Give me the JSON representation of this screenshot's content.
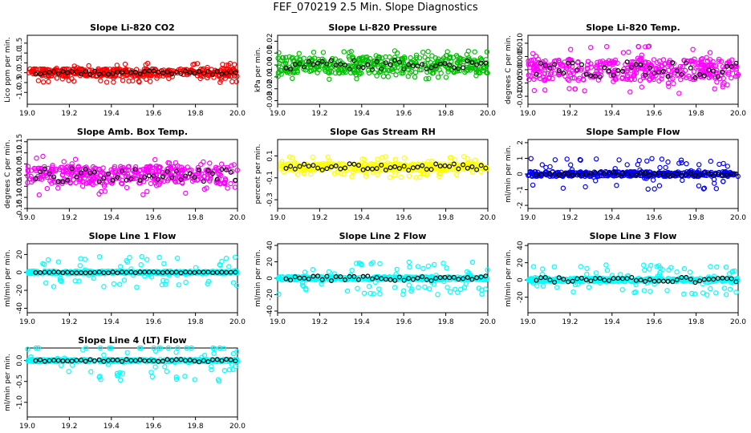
{
  "page_title": "FEF_070219  2.5 Min. Slope Diagnostics",
  "chart_data": [
    {
      "type": "scatter",
      "title": "Slope Li-820 CO2",
      "ylabel": "Lico ppm per min.",
      "color": "#ff0000",
      "xlim": [
        19.0,
        20.0
      ],
      "ylim": [
        -1.6,
        1.9
      ],
      "xticks": [
        19.0,
        19.2,
        19.4,
        19.6,
        19.8,
        20.0
      ],
      "xticklabels": [
        "19.0",
        "19.2",
        "19.4",
        "19.6",
        "19.8",
        "20.0"
      ],
      "yticks": [
        -1.0,
        -0.5,
        0.0,
        0.5,
        1.0,
        1.5
      ],
      "yticklabels": [
        "-1.0",
        "-0.5",
        "0.0",
        "0.5",
        "1.0",
        "1.5"
      ],
      "band": 0.2,
      "outlier": 0.5,
      "black_band": 0.1
    },
    {
      "type": "scatter",
      "title": "Slope Li-820 Pressure",
      "ylabel": "kPa per min.",
      "color": "#00c000",
      "xlim": [
        19.0,
        20.0
      ],
      "ylim": [
        -0.033,
        0.025
      ],
      "xticks": [
        19.0,
        19.2,
        19.4,
        19.6,
        19.8,
        20.0
      ],
      "xticklabels": [
        "19.0",
        "19.2",
        "19.4",
        "19.6",
        "19.8",
        "20.0"
      ],
      "yticks": [
        -0.03,
        -0.02,
        -0.01,
        0.0,
        0.01,
        0.02
      ],
      "yticklabels": [
        "-0.03",
        "-0.02",
        "-0.01",
        "0.00",
        "0.01",
        "0.02"
      ],
      "band": 0.007,
      "outlier": 0.012,
      "black_band": 0.004
    },
    {
      "type": "scatter",
      "title": "Slope Li-820 Temp.",
      "ylabel": "degrees C per min.",
      "color": "#ff00ff",
      "xlim": [
        19.0,
        20.0
      ],
      "ylim": [
        -0.013,
        0.013
      ],
      "xticks": [
        19.0,
        19.2,
        19.4,
        19.6,
        19.8,
        20.0
      ],
      "xticklabels": [
        "19.0",
        "19.2",
        "19.4",
        "19.6",
        "19.8",
        "20.0"
      ],
      "yticks": [
        -0.01,
        -0.005,
        0.0,
        0.005,
        0.01
      ],
      "yticklabels": [
        "-0.010",
        "-0.005",
        "0.000",
        "0.005",
        "0.010"
      ],
      "band": 0.004,
      "outlier": 0.009,
      "black_band": 0.003
    },
    {
      "type": "scatter",
      "title": "Slope Amb. Box Temp.",
      "ylabel": "degrees C per min.",
      "color": "#ff00ff",
      "xlim": [
        19.0,
        20.0
      ],
      "ylim": [
        -0.15,
        0.16
      ],
      "xticks": [
        19.0,
        19.2,
        19.4,
        19.6,
        19.8,
        20.0
      ],
      "xticklabels": [
        "19.0",
        "19.2",
        "19.4",
        "19.6",
        "19.8",
        "20.0"
      ],
      "yticks": [
        -0.15,
        -0.1,
        -0.05,
        0.0,
        0.05,
        0.1,
        0.15
      ],
      "yticklabels": [
        "-0.15",
        "-0.10",
        "-0.05",
        "0.00",
        "0.05",
        "0.10",
        "0.15"
      ],
      "band": 0.04,
      "outlier": 0.09,
      "black_band": 0.03
    },
    {
      "type": "scatter",
      "title": "Slope Gas Stream RH",
      "ylabel": "percent per min.",
      "color": "#ffff00",
      "xlim": [
        19.0,
        20.0
      ],
      "ylim": [
        -0.38,
        0.25
      ],
      "xticks": [
        19.0,
        19.2,
        19.4,
        19.6,
        19.8,
        20.0
      ],
      "xticklabels": [
        "19.0",
        "19.2",
        "19.4",
        "19.6",
        "19.8",
        "20.0"
      ],
      "yticks": [
        -0.3,
        -0.1,
        0.1
      ],
      "yticklabels": [
        "-0.3",
        "-0.1",
        "0.1"
      ],
      "band": 0.03,
      "outlier": 0.1,
      "black_band": 0.03
    },
    {
      "type": "scatter",
      "title": "Slope Sample Flow",
      "ylabel": "ml/min per min.",
      "color": "#0000ff",
      "xlim": [
        19.0,
        20.0
      ],
      "ylim": [
        -2.2,
        2.2
      ],
      "xticks": [
        19.0,
        19.2,
        19.4,
        19.6,
        19.8,
        20.0
      ],
      "xticklabels": [
        "19.0",
        "19.2",
        "19.4",
        "19.6",
        "19.8",
        "20.0"
      ],
      "yticks": [
        -2,
        -1,
        0,
        1,
        2
      ],
      "yticklabels": [
        "-2",
        "-1",
        "0",
        "1",
        "2"
      ],
      "band": 0.15,
      "outlier": 1.0,
      "black_band": 0.1
    },
    {
      "type": "scatter",
      "title": "Slope Line 1 Flow",
      "ylabel": "ml/min per min.",
      "color": "#00ffff",
      "xlim": [
        19.0,
        20.0
      ],
      "ylim": [
        -45,
        32
      ],
      "xticks": [
        19.0,
        19.2,
        19.4,
        19.6,
        19.8,
        20.0
      ],
      "xticklabels": [
        "19.0",
        "19.2",
        "19.4",
        "19.6",
        "19.8",
        "20.0"
      ],
      "yticks": [
        -40,
        -20,
        0,
        20
      ],
      "yticklabels": [
        "-40",
        "-20",
        "0",
        "20"
      ],
      "band": 1.5,
      "outlier": 18,
      "black_band": 0.5
    },
    {
      "type": "scatter",
      "title": "Slope Line 2 Flow",
      "ylabel": "ml/min per min.",
      "color": "#00ffff",
      "xlim": [
        19.0,
        20.0
      ],
      "ylim": [
        -42,
        42
      ],
      "xticks": [
        19.0,
        19.2,
        19.4,
        19.6,
        19.8,
        20.0
      ],
      "xticklabels": [
        "19.0",
        "19.2",
        "19.4",
        "19.6",
        "19.8",
        "20.0"
      ],
      "yticks": [
        -40,
        -20,
        0,
        20,
        40
      ],
      "yticklabels": [
        "-40",
        "-20",
        "0",
        "20",
        "40"
      ],
      "band": 2,
      "outlier": 20,
      "black_band": 3
    },
    {
      "type": "scatter",
      "title": "Slope Line 3 Flow",
      "ylabel": "ml/min per min.",
      "color": "#00ffff",
      "xlim": [
        19.0,
        20.0
      ],
      "ylim": [
        -38,
        42
      ],
      "xticks": [
        19.0,
        19.2,
        19.4,
        19.6,
        19.8,
        20.0
      ],
      "xticklabels": [
        "19.0",
        "19.2",
        "19.4",
        "19.6",
        "19.8",
        "20.0"
      ],
      "yticks": [
        -20,
        0,
        20,
        40
      ],
      "yticklabels": [
        "-20",
        "0",
        "20",
        "40"
      ],
      "band": 2,
      "outlier": 18,
      "black_band": 3
    },
    {
      "type": "scatter",
      "title": "Slope Line 4 (LT) Flow",
      "ylabel": "ml/min per min.",
      "color": "#00ffff",
      "xlim": [
        19.0,
        20.0
      ],
      "ylim": [
        -1.35,
        0.3
      ],
      "xticks": [
        19.0,
        19.2,
        19.4,
        19.6,
        19.8,
        20.0
      ],
      "xticklabels": [
        "19.0",
        "19.2",
        "19.4",
        "19.6",
        "19.8",
        "20.0"
      ],
      "yticks": [
        -1.0,
        -0.5,
        0.0
      ],
      "yticklabels": [
        "-1.0",
        "-0.5",
        "0.0"
      ],
      "band": 0.03,
      "outlier": 0.5,
      "black_band": 0.03
    }
  ]
}
